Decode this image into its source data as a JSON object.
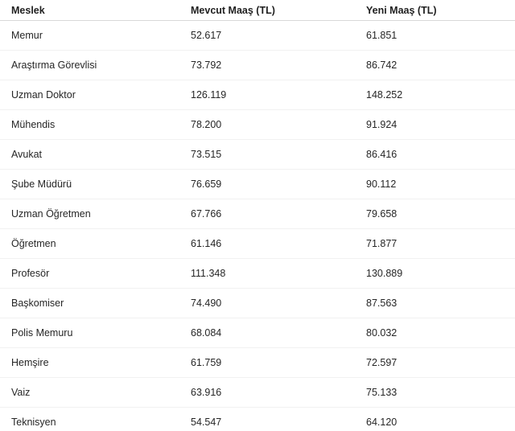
{
  "table": {
    "headers": {
      "profession": "Meslek",
      "current_salary": "Mevcut Maaş (TL)",
      "new_salary": "Yeni Maaş (TL)"
    },
    "rows": [
      {
        "meslek": "Memur",
        "mevcut": "52.617",
        "yeni": "61.851"
      },
      {
        "meslek": "Araştırma Görevlisi",
        "mevcut": "73.792",
        "yeni": "86.742"
      },
      {
        "meslek": "Uzman Doktor",
        "mevcut": "126.119",
        "yeni": "148.252"
      },
      {
        "meslek": "Mühendis",
        "mevcut": "78.200",
        "yeni": "91.924"
      },
      {
        "meslek": "Avukat",
        "mevcut": "73.515",
        "yeni": "86.416"
      },
      {
        "meslek": "Şube Müdürü",
        "mevcut": "76.659",
        "yeni": "90.112"
      },
      {
        "meslek": "Uzman Öğretmen",
        "mevcut": "67.766",
        "yeni": "79.658"
      },
      {
        "meslek": "Öğretmen",
        "mevcut": "61.146",
        "yeni": "71.877"
      },
      {
        "meslek": "Profesör",
        "mevcut": "111.348",
        "yeni": "130.889"
      },
      {
        "meslek": "Başkomiser",
        "mevcut": "74.490",
        "yeni": "87.563"
      },
      {
        "meslek": "Polis Memuru",
        "mevcut": "68.084",
        "yeni": "80.032"
      },
      {
        "meslek": "Hemşire",
        "mevcut": "61.759",
        "yeni": "72.597"
      },
      {
        "meslek": "Vaiz",
        "mevcut": "63.916",
        "yeni": "75.133"
      },
      {
        "meslek": "Teknisyen",
        "mevcut": "54.547",
        "yeni": "64.120"
      }
    ],
    "text_color": "#262626",
    "header_border_color": "#d8d8d8",
    "row_border_color": "#f1f1f1"
  }
}
